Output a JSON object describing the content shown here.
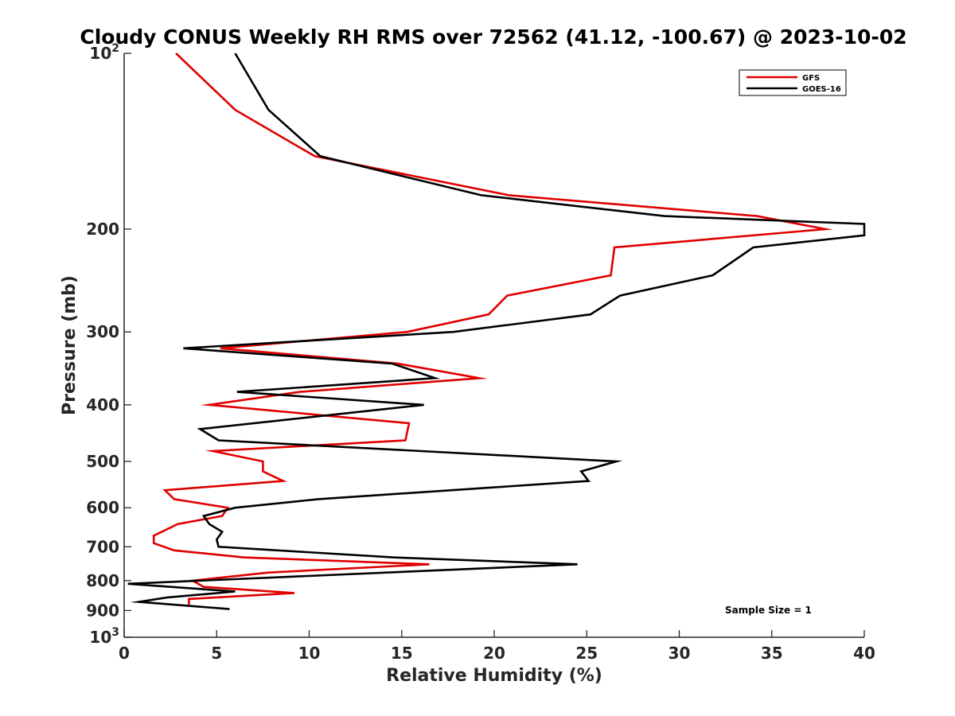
{
  "chart_data": {
    "type": "line",
    "title": "Cloudy CONUS Weekly RH RMS over 72562 (41.12, -100.67) @ 2023-10-02",
    "xlabel": "Relative Humidity (%)",
    "ylabel": "Pressure (mb)",
    "xlim": [
      0,
      40
    ],
    "ylim": [
      100,
      1000
    ],
    "y_scale": "log",
    "y_reversed": true,
    "grid": false,
    "legend_position": "top-right",
    "x_ticks": [
      "0",
      "5",
      "10",
      "15",
      "20",
      "25",
      "30",
      "35",
      "40"
    ],
    "y_ticks": [
      {
        "value": 100,
        "base": "10",
        "exp": "2"
      },
      {
        "value": 200,
        "label": "200"
      },
      {
        "value": 300,
        "label": "300"
      },
      {
        "value": 400,
        "label": "400"
      },
      {
        "value": 500,
        "label": "500"
      },
      {
        "value": 600,
        "label": "600"
      },
      {
        "value": 700,
        "label": "700"
      },
      {
        "value": 800,
        "label": "800"
      },
      {
        "value": 900,
        "label": "900"
      },
      {
        "value": 1000,
        "base": "10",
        "exp": "3"
      }
    ],
    "series": [
      {
        "name": "GFS",
        "color": "#e00000",
        "points": [
          [
            2.8,
            100
          ],
          [
            6.0,
            125
          ],
          [
            10.3,
            150
          ],
          [
            20.8,
            175
          ],
          [
            34.2,
            190
          ],
          [
            37.9,
            200
          ],
          [
            26.5,
            215
          ],
          [
            26.3,
            240
          ],
          [
            20.7,
            260
          ],
          [
            19.7,
            280
          ],
          [
            15.3,
            300
          ],
          [
            5.2,
            320
          ],
          [
            14.8,
            340
          ],
          [
            19.2,
            360
          ],
          [
            9.5,
            380
          ],
          [
            4.6,
            400
          ],
          [
            15.4,
            430
          ],
          [
            15.2,
            460
          ],
          [
            4.8,
            480
          ],
          [
            7.5,
            500
          ],
          [
            7.5,
            520
          ],
          [
            8.6,
            540
          ],
          [
            2.2,
            560
          ],
          [
            2.7,
            580
          ],
          [
            5.6,
            600
          ],
          [
            5.3,
            620
          ],
          [
            2.9,
            640
          ],
          [
            1.6,
            670
          ],
          [
            1.6,
            690
          ],
          [
            2.7,
            710
          ],
          [
            6.5,
            730
          ],
          [
            16.5,
            750
          ],
          [
            7.8,
            775
          ],
          [
            3.7,
            800
          ],
          [
            4.3,
            820
          ],
          [
            9.2,
            840
          ],
          [
            3.5,
            860
          ],
          [
            3.5,
            880
          ]
        ]
      },
      {
        "name": "GOES-16",
        "color": "#000000",
        "points": [
          [
            6.0,
            100
          ],
          [
            7.8,
            125
          ],
          [
            10.6,
            150
          ],
          [
            19.3,
            175
          ],
          [
            29.2,
            190
          ],
          [
            40.0,
            196
          ],
          [
            40.0,
            205
          ],
          [
            34.0,
            215
          ],
          [
            31.8,
            240
          ],
          [
            26.8,
            260
          ],
          [
            25.2,
            280
          ],
          [
            17.8,
            300
          ],
          [
            3.2,
            320
          ],
          [
            14.5,
            340
          ],
          [
            16.8,
            360
          ],
          [
            6.1,
            380
          ],
          [
            16.2,
            400
          ],
          [
            4.1,
            440
          ],
          [
            5.1,
            460
          ],
          [
            26.6,
            500
          ],
          [
            24.7,
            520
          ],
          [
            25.1,
            540
          ],
          [
            10.5,
            580
          ],
          [
            6.0,
            600
          ],
          [
            4.3,
            620
          ],
          [
            4.6,
            640
          ],
          [
            5.3,
            660
          ],
          [
            5.0,
            680
          ],
          [
            5.1,
            700
          ],
          [
            14.6,
            730
          ],
          [
            24.5,
            750
          ],
          [
            0.2,
            810
          ],
          [
            6.0,
            835
          ],
          [
            2.3,
            855
          ],
          [
            0.8,
            870
          ],
          [
            5.7,
            895
          ]
        ]
      }
    ],
    "annotations": [
      "Sample Size = 1"
    ]
  }
}
